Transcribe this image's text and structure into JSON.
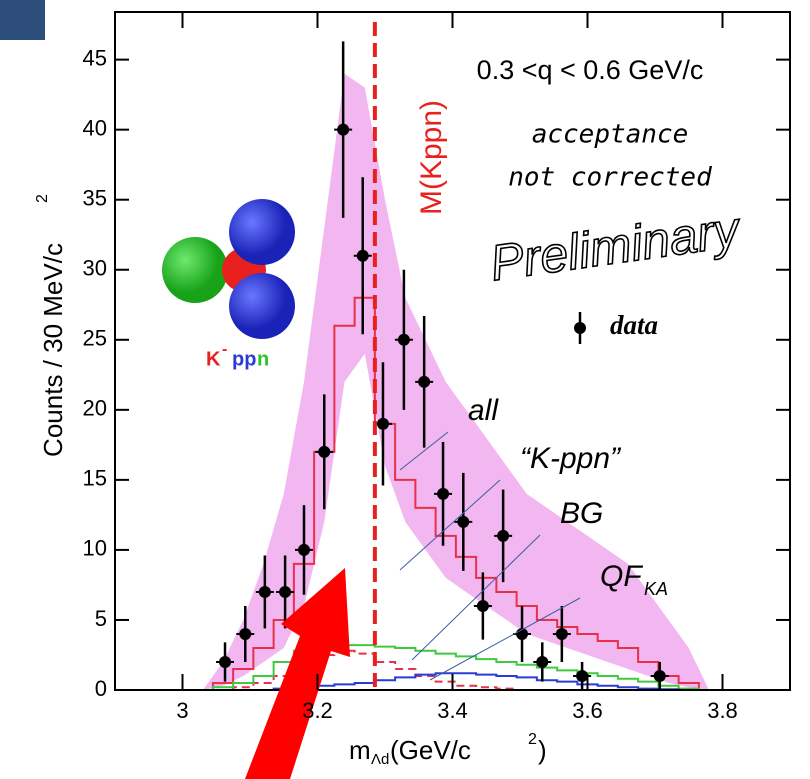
{
  "chart_data": {
    "type": "scatter",
    "x_label": "m",
    "x_label_sub": "Λd",
    "x_label_unit": " (GeV/c",
    "x_label_sup": "2",
    "x_label_end": ")",
    "y_label": "Counts / 30 MeV/c",
    "y_label_sup": "2",
    "xlim": [
      2.9,
      3.9
    ],
    "xticks": [
      3,
      3.2,
      3.4,
      3.6,
      3.8
    ],
    "ylim": [
      0,
      48.4
    ],
    "yticks": [
      0,
      5,
      10,
      15,
      20,
      25,
      30,
      35,
      40,
      45
    ],
    "range_text": "0.3 <q < 0.6 GeV/c",
    "note": [
      "acceptance",
      "not corrected"
    ],
    "watermark": "Preliminary",
    "mass_line": {
      "label": "M(Kppn)",
      "x": 3.285,
      "color": "#e8201e"
    },
    "icon_label": {
      "k": "K",
      "sup": "-",
      "pp": "pp",
      "n": "n"
    },
    "data": {
      "name": "data",
      "color": "#000000",
      "x": [
        3.063,
        3.093,
        3.122,
        3.152,
        3.18,
        3.21,
        3.238,
        3.267,
        3.297,
        3.328,
        3.358,
        3.386,
        3.416,
        3.445,
        3.475,
        3.503,
        3.533,
        3.562,
        3.592,
        3.707
      ],
      "values": [
        2,
        4,
        7,
        7,
        10,
        17,
        40,
        31,
        19,
        25,
        22,
        14,
        12,
        6,
        11,
        4,
        2,
        4,
        1,
        1
      ],
      "errors": [
        1.4,
        2,
        2.6,
        2.6,
        3.2,
        4.1,
        6.3,
        5.6,
        4.4,
        5,
        4.7,
        3.7,
        3.5,
        2.4,
        3.3,
        2,
        1.4,
        2,
        1,
        1
      ]
    },
    "band": {
      "color": "#f2b7f0",
      "x": [
        3.03,
        3.06,
        3.09,
        3.12,
        3.15,
        3.18,
        3.21,
        3.24,
        3.27,
        3.3,
        3.33,
        3.36,
        3.39,
        3.42,
        3.45,
        3.48,
        3.51,
        3.54,
        3.57,
        3.6,
        3.63,
        3.66,
        3.69,
        3.72,
        3.75,
        3.78
      ],
      "upper": [
        0,
        2,
        5,
        9,
        14,
        22,
        33,
        44,
        43,
        35,
        28,
        25,
        22,
        20,
        18,
        16,
        14,
        13,
        12,
        11,
        10,
        9,
        7,
        5,
        3,
        0
      ],
      "lower": [
        0,
        0.3,
        1,
        2,
        3,
        6,
        12,
        22,
        24,
        16,
        12,
        10,
        8,
        7,
        6,
        5,
        4,
        3.5,
        3,
        2.5,
        2,
        1.5,
        1,
        0.5,
        0.2,
        0
      ]
    },
    "x": [
      3.03,
      3.06,
      3.09,
      3.12,
      3.15,
      3.18,
      3.21,
      3.24,
      3.27,
      3.3,
      3.33,
      3.36,
      3.39,
      3.42,
      3.45,
      3.48,
      3.51,
      3.54,
      3.57,
      3.6,
      3.63,
      3.66,
      3.69,
      3.72,
      3.75,
      3.78
    ],
    "series": [
      {
        "name": "all",
        "color": "#e8304a",
        "dash": false,
        "values": [
          0,
          0.5,
          1.5,
          3,
          5,
          9,
          17,
          26,
          28,
          19,
          15,
          13,
          11,
          9.5,
          8,
          7,
          6,
          5,
          4.5,
          4,
          3.5,
          3,
          2,
          1,
          0.5,
          0
        ]
      },
      {
        "name": "“K-ppn”",
        "color": "#e8304a",
        "dash": true,
        "values": [
          0,
          0,
          0.2,
          0.5,
          1,
          1.8,
          2.5,
          2.8,
          2.6,
          2,
          1.5,
          1,
          0.6,
          0.3,
          0.2,
          0.1,
          0,
          0,
          0,
          0,
          0,
          0,
          0,
          0,
          0,
          0
        ]
      },
      {
        "name": "BG",
        "color": "#3ec93e",
        "dash": false,
        "values": [
          0,
          0.2,
          0.5,
          1,
          2,
          2.8,
          3.1,
          3.2,
          3.2,
          3.1,
          3,
          2.8,
          2.6,
          2.4,
          2.2,
          2,
          1.8,
          1.6,
          1.4,
          1.2,
          1,
          0.8,
          0.6,
          0.3,
          0.1,
          0
        ]
      },
      {
        "name": "QF",
        "sub": "KA",
        "color": "#2a3bd6",
        "dash": false,
        "values": [
          0,
          0,
          0,
          0,
          0.1,
          0.2,
          0.3,
          0.4,
          0.5,
          0.7,
          0.9,
          1.1,
          1.2,
          1.2,
          1.1,
          1,
          0.9,
          0.7,
          0.6,
          0.4,
          0.3,
          0.2,
          0.1,
          0.05,
          0,
          0
        ]
      }
    ]
  }
}
